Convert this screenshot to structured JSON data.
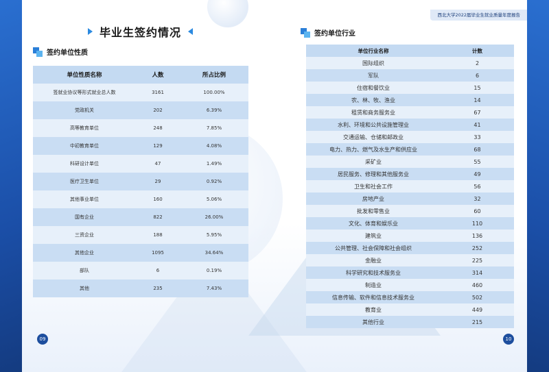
{
  "header": {
    "report_title": "西北大学2022届毕业生就业质量年度报告"
  },
  "chapter": {
    "title": "毕业生签约情况"
  },
  "section_left": {
    "title": "签约单位性质",
    "columns": [
      "单位性质名称",
      "人数",
      "所占比例"
    ],
    "rows": [
      [
        "签就业协议等形式就业总人数",
        "3161",
        "100.00%"
      ],
      [
        "党政机关",
        "202",
        "6.39%"
      ],
      [
        "高等教育单位",
        "248",
        "7.85%"
      ],
      [
        "中初教育单位",
        "129",
        "4.08%"
      ],
      [
        "科研设计单位",
        "47",
        "1.49%"
      ],
      [
        "医疗卫生单位",
        "29",
        "0.92%"
      ],
      [
        "其他事业单位",
        "160",
        "5.06%"
      ],
      [
        "国有企业",
        "822",
        "26.00%"
      ],
      [
        "三资企业",
        "188",
        "5.95%"
      ],
      [
        "其他企业",
        "1095",
        "34.64%"
      ],
      [
        "部队",
        "6",
        "0.19%"
      ],
      [
        "其他",
        "235",
        "7.43%"
      ]
    ]
  },
  "section_right": {
    "title": "签约单位行业",
    "columns": [
      "单位行业名称",
      "计数"
    ],
    "rows": [
      [
        "国际组织",
        "2"
      ],
      [
        "军队",
        "6"
      ],
      [
        "住宿和餐饮业",
        "15"
      ],
      [
        "农、林、牧、渔业",
        "14"
      ],
      [
        "租赁和商务服务业",
        "67"
      ],
      [
        "水利、环境和公共设施管理业",
        "41"
      ],
      [
        "交通运输、仓储和邮政业",
        "33"
      ],
      [
        "电力、热力、燃气及水生产和供应业",
        "68"
      ],
      [
        "采矿业",
        "55"
      ],
      [
        "居民服务、修理和其他服务业",
        "49"
      ],
      [
        "卫生和社会工作",
        "56"
      ],
      [
        "房地产业",
        "32"
      ],
      [
        "批发和零售业",
        "60"
      ],
      [
        "文化、体育和娱乐业",
        "110"
      ],
      [
        "建筑业",
        "136"
      ],
      [
        "公共管理、社会保障和社会组织",
        "252"
      ],
      [
        "金融业",
        "225"
      ],
      [
        "科学研究和技术服务业",
        "314"
      ],
      [
        "制造业",
        "460"
      ],
      [
        "信息传输、软件和信息技术服务业",
        "502"
      ],
      [
        "教育业",
        "449"
      ],
      [
        "其他行业",
        "215"
      ]
    ]
  },
  "pages": {
    "left": "09",
    "right": "10"
  }
}
